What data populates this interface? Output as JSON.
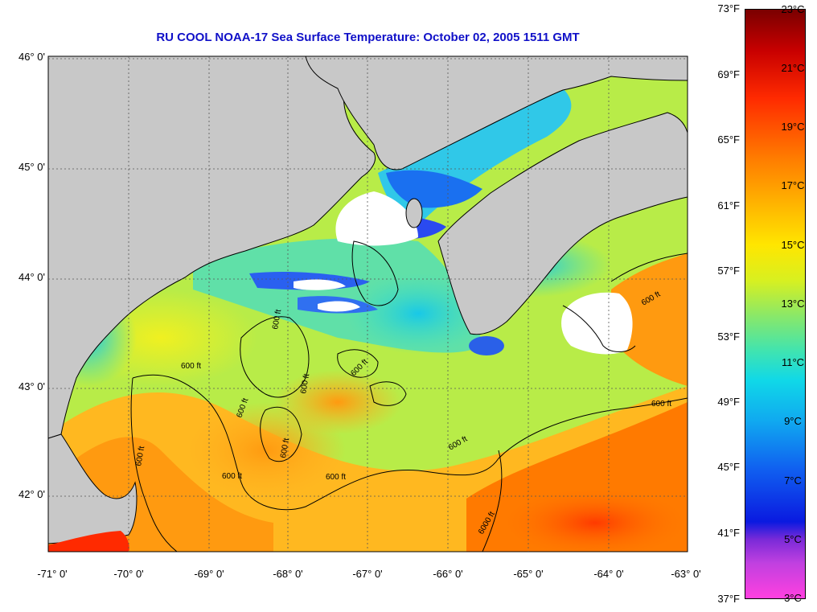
{
  "title": "RU COOL  NOAA-17  Sea Surface Temperature:  October 02, 2005 1511 GMT",
  "map": {
    "lon_range": [
      -71,
      -63
    ],
    "lat_range": [
      41.5,
      46.1
    ],
    "latitude_labels": [
      "46° 0'",
      "45° 0'",
      "44° 0'",
      "43° 0'",
      "42° 0'"
    ],
    "longitude_labels": [
      "-71° 0'",
      "-70° 0'",
      "-69° 0'",
      "-68° 0'",
      "-67° 0'",
      "-66° 0'",
      "-65° 0'",
      "-64° 0'",
      "-63° 0'"
    ],
    "contour_labels": [
      "600 ft",
      "600 ft",
      "600 ft",
      "600 ft",
      "600 ft",
      "600 ft",
      "600 ft",
      "600 ft",
      "600 ft",
      "600 ft",
      "600 ft",
      "600 ft",
      "6000 ft"
    ],
    "colors": {
      "land": "#c8c8c8",
      "cloud": "#ffffff",
      "grid": "#555555"
    }
  },
  "colorbar": {
    "fahrenheit_labels": [
      "73°F",
      "69°F",
      "65°F",
      "61°F",
      "57°F",
      "53°F",
      "49°F",
      "45°F",
      "41°F",
      "37°F"
    ],
    "celsius_labels": [
      "23°C",
      "21°C",
      "19°C",
      "17°C",
      "15°C",
      "13°C",
      "11°C",
      "9°C",
      "7°C",
      "5°C",
      "3°C"
    ],
    "range_f": [
      37,
      73
    ],
    "range_c": [
      3,
      23
    ]
  }
}
